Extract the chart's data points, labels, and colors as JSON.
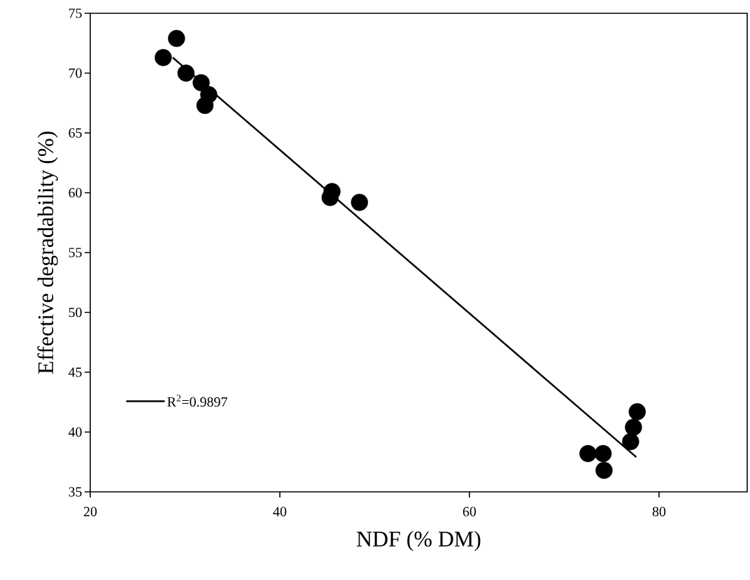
{
  "chart_data": {
    "type": "scatter",
    "xlabel": "NDF (% DM)",
    "ylabel": "Effective degradability (%)",
    "xlim": [
      20,
      89.3
    ],
    "ylim": [
      35,
      75
    ],
    "xticks": [
      20,
      40,
      60,
      80
    ],
    "yticks": [
      35,
      40,
      45,
      50,
      55,
      60,
      65,
      70,
      75
    ],
    "grid": false,
    "legend": "bottom left",
    "marker": "circle",
    "series": [
      {
        "color": "#000000",
        "x": [
          27.7,
          29.1,
          30.1,
          31.7,
          32.5,
          32.1,
          45.5,
          45.3,
          48.4,
          72.5,
          74.1,
          74.2,
          77.0,
          77.3,
          77.7
        ],
        "values": [
          71.3,
          72.9,
          70.0,
          69.2,
          68.2,
          67.3,
          60.1,
          59.6,
          59.2,
          38.2,
          38.2,
          36.8,
          39.2,
          40.4,
          41.7
        ]
      },
      {
        "type": "line",
        "name": "R$^{2}$=0.9897",
        "color": "#000000",
        "marker": "none",
        "line_style": "solid",
        "x": [
          28.7,
          77.6
        ],
        "values": [
          71.3,
          37.9
        ]
      }
    ]
  }
}
